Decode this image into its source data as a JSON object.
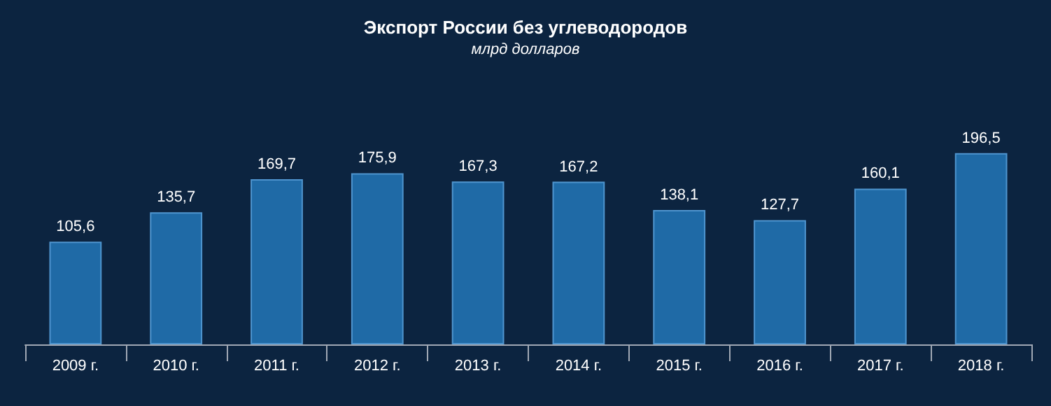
{
  "chart_data": {
    "type": "bar",
    "title": "Экспорт России без углеводородов",
    "subtitle": "млрд долларов",
    "categories": [
      "2009 г.",
      "2010 г.",
      "2011 г.",
      "2012 г.",
      "2013 г.",
      "2014 г.",
      "2015 г.",
      "2016 г.",
      "2017 г.",
      "2018 г."
    ],
    "values": [
      105.6,
      135.7,
      169.7,
      175.9,
      167.3,
      167.2,
      138.1,
      127.7,
      160.1,
      196.5
    ],
    "value_labels": [
      "105,6",
      "135,7",
      "169,7",
      "175,9",
      "167,3",
      "167,2",
      "138,1",
      "127,7",
      "160,1",
      "196,5"
    ],
    "color": "#1f6aa6"
  }
}
